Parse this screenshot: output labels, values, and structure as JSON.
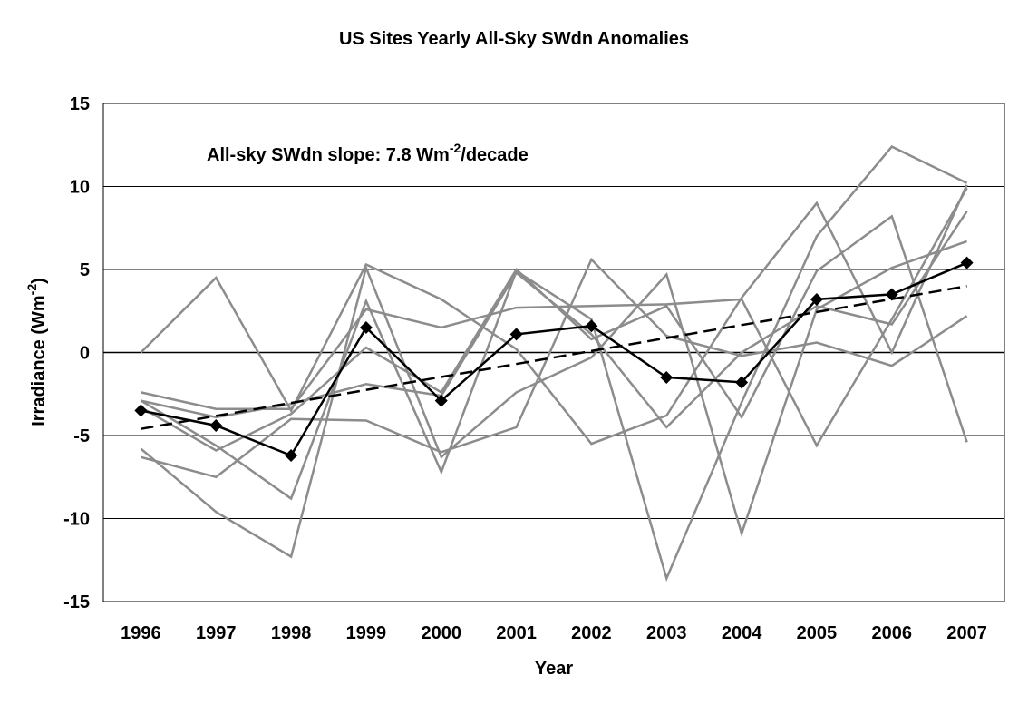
{
  "chart_data": {
    "type": "line",
    "title": "US Sites Yearly All-Sky SWdn Anomalies",
    "xlabel": "Year",
    "ylabel": "Irradiance (Wm",
    "ylabel_sup": "-2",
    "ylabel_end": ")",
    "annotation": {
      "prefix": "All-sky SWdn slope: 7.8 Wm",
      "sup": "-2",
      "suffix": "/decade"
    },
    "categories": [
      "1996",
      "1997",
      "1998",
      "1999",
      "2000",
      "2001",
      "2002",
      "2003",
      "2004",
      "2005",
      "2006",
      "2007"
    ],
    "ylim": [
      -15,
      15
    ],
    "yticks": [
      -15,
      -10,
      -5,
      0,
      5,
      10,
      15
    ],
    "grid": true,
    "colors": {
      "sites": "#8c8c8c",
      "mean": "#000000",
      "trend": "#000000",
      "grid": "#000000"
    },
    "site_series": [
      {
        "values": [
          0.0,
          4.5,
          -3.5,
          5.3,
          3.2,
          0.2,
          -5.5,
          -3.8,
          3.3,
          9.0,
          0.0,
          10.1
        ]
      },
      {
        "values": [
          -2.4,
          -3.4,
          -3.4,
          2.6,
          1.5,
          2.7,
          2.8,
          2.9,
          3.2,
          -5.6,
          2.0,
          9.9
        ]
      },
      {
        "values": [
          -6.3,
          -7.5,
          -4.0,
          -4.1,
          -6.0,
          -4.5,
          5.6,
          1.0,
          -0.2,
          0.6,
          -0.8,
          2.2
        ]
      },
      {
        "values": [
          -2.9,
          -5.6,
          -8.8,
          3.1,
          -7.2,
          4.9,
          2.0,
          -13.6,
          -3.0,
          7.0,
          12.4,
          10.2
        ]
      },
      {
        "values": [
          -5.8,
          -9.6,
          -12.3,
          5.1,
          -6.3,
          -2.4,
          -0.3,
          4.7,
          -10.9,
          2.6,
          5.1,
          6.7
        ]
      },
      {
        "values": [
          -2.9,
          -3.9,
          -3.1,
          -1.9,
          -2.6,
          4.8,
          1.1,
          -4.5,
          0.0,
          2.8,
          1.7,
          8.5
        ]
      },
      {
        "values": [
          -3.3,
          -5.9,
          -3.7,
          0.3,
          -2.4,
          5.0,
          0.8,
          2.8,
          -3.9,
          4.9,
          8.2,
          -5.4
        ]
      }
    ],
    "series": [
      {
        "values": [
          -3.5,
          -4.4,
          -6.2,
          1.5,
          -2.9,
          1.1,
          1.6,
          -1.5,
          -1.8,
          3.2,
          3.5,
          5.4
        ]
      }
    ],
    "trend": {
      "start": -4.6,
      "end": 4.0
    }
  }
}
